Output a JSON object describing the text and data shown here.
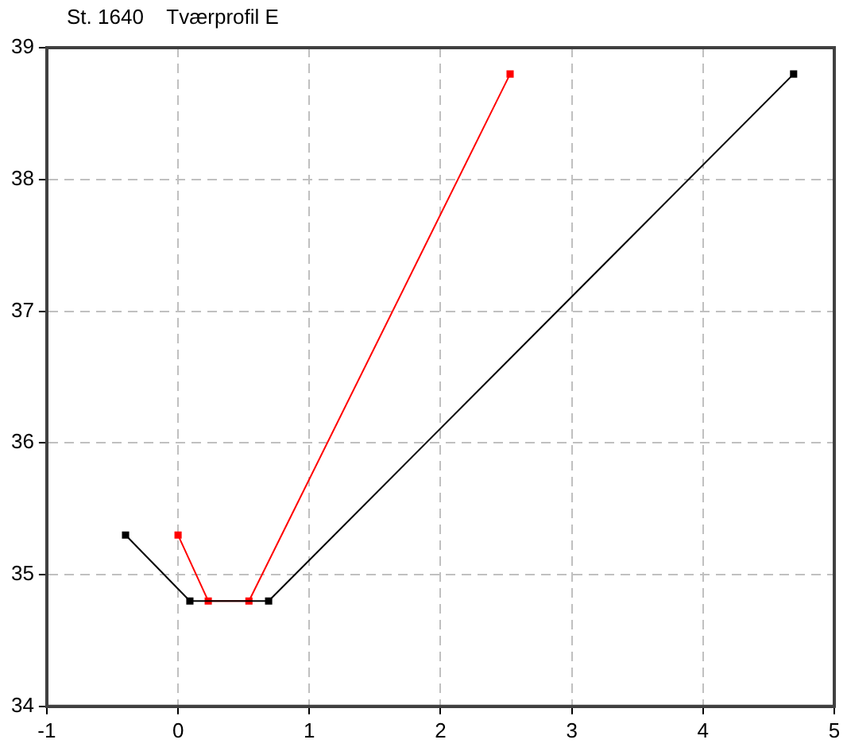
{
  "chart_data": {
    "type": "line",
    "title": "St. 1640    Tværprofil E",
    "xlim": [
      -1,
      5
    ],
    "xticks": [
      -1,
      0,
      1,
      2,
      3,
      4,
      5
    ],
    "ylim": [
      34,
      39
    ],
    "yticks": [
      34,
      35,
      36,
      37,
      38,
      39
    ],
    "grid": true,
    "legend": false,
    "marker": "square",
    "line_style": "solid",
    "series": [
      {
        "color": "#000000",
        "x": [
          -0.4,
          0.09,
          0.69,
          4.69
        ],
        "values": [
          35.3,
          34.8,
          34.8,
          38.8
        ]
      },
      {
        "color": "#ff0000",
        "x": [
          0,
          0.23,
          0.54,
          2.53
        ],
        "values": [
          35.3,
          34.8,
          34.8,
          38.8
        ]
      }
    ]
  }
}
